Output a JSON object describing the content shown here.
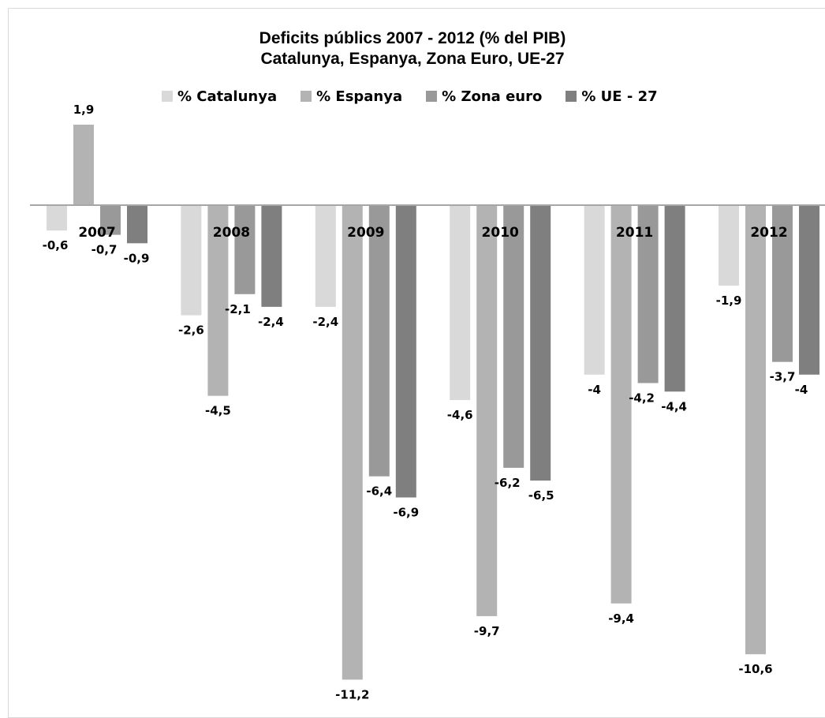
{
  "chart_data": {
    "type": "bar",
    "title": "Deficits públics 2007 - 2012 (% del PIB)",
    "subtitle": "Catalunya, Espanya, Zona Euro, UE-27",
    "categories": [
      "2007",
      "2008",
      "2009",
      "2010",
      "2011",
      "2012"
    ],
    "series": [
      {
        "name": "% Catalunya",
        "color": "#d9d9d9",
        "values": [
          -0.6,
          -2.6,
          -2.4,
          -4.6,
          -4,
          -1.9
        ],
        "labels": [
          "-0,6",
          "-2,6",
          "-2,4",
          "-4,6",
          "-4",
          "-1,9"
        ]
      },
      {
        "name": "% Espanya",
        "color": "#b3b3b3",
        "values": [
          1.9,
          -4.5,
          -11.2,
          -9.7,
          -9.4,
          -10.6
        ],
        "labels": [
          "1,9",
          "-4,5",
          "-11,2",
          "-9,7",
          "-9,4",
          "-10,6"
        ]
      },
      {
        "name": "% Zona euro",
        "color": "#999999",
        "values": [
          -0.7,
          -2.1,
          -6.4,
          -6.2,
          -4.2,
          -3.7
        ],
        "labels": [
          "-0,7",
          "-2,1",
          "-6,4",
          "-6,2",
          "-4,2",
          "-3,7"
        ]
      },
      {
        "name": "% UE - 27",
        "color": "#7f7f7f",
        "values": [
          -0.9,
          -2.4,
          -6.9,
          -6.5,
          -4.4,
          -4
        ],
        "labels": [
          "-0,9",
          "-2,4",
          "-6,9",
          "-6,5",
          "-4,4",
          "-4"
        ]
      }
    ],
    "xlabel": "",
    "ylabel": "",
    "grid": false,
    "legend_position": "top",
    "axis_line_color": "#a6a6a6"
  }
}
